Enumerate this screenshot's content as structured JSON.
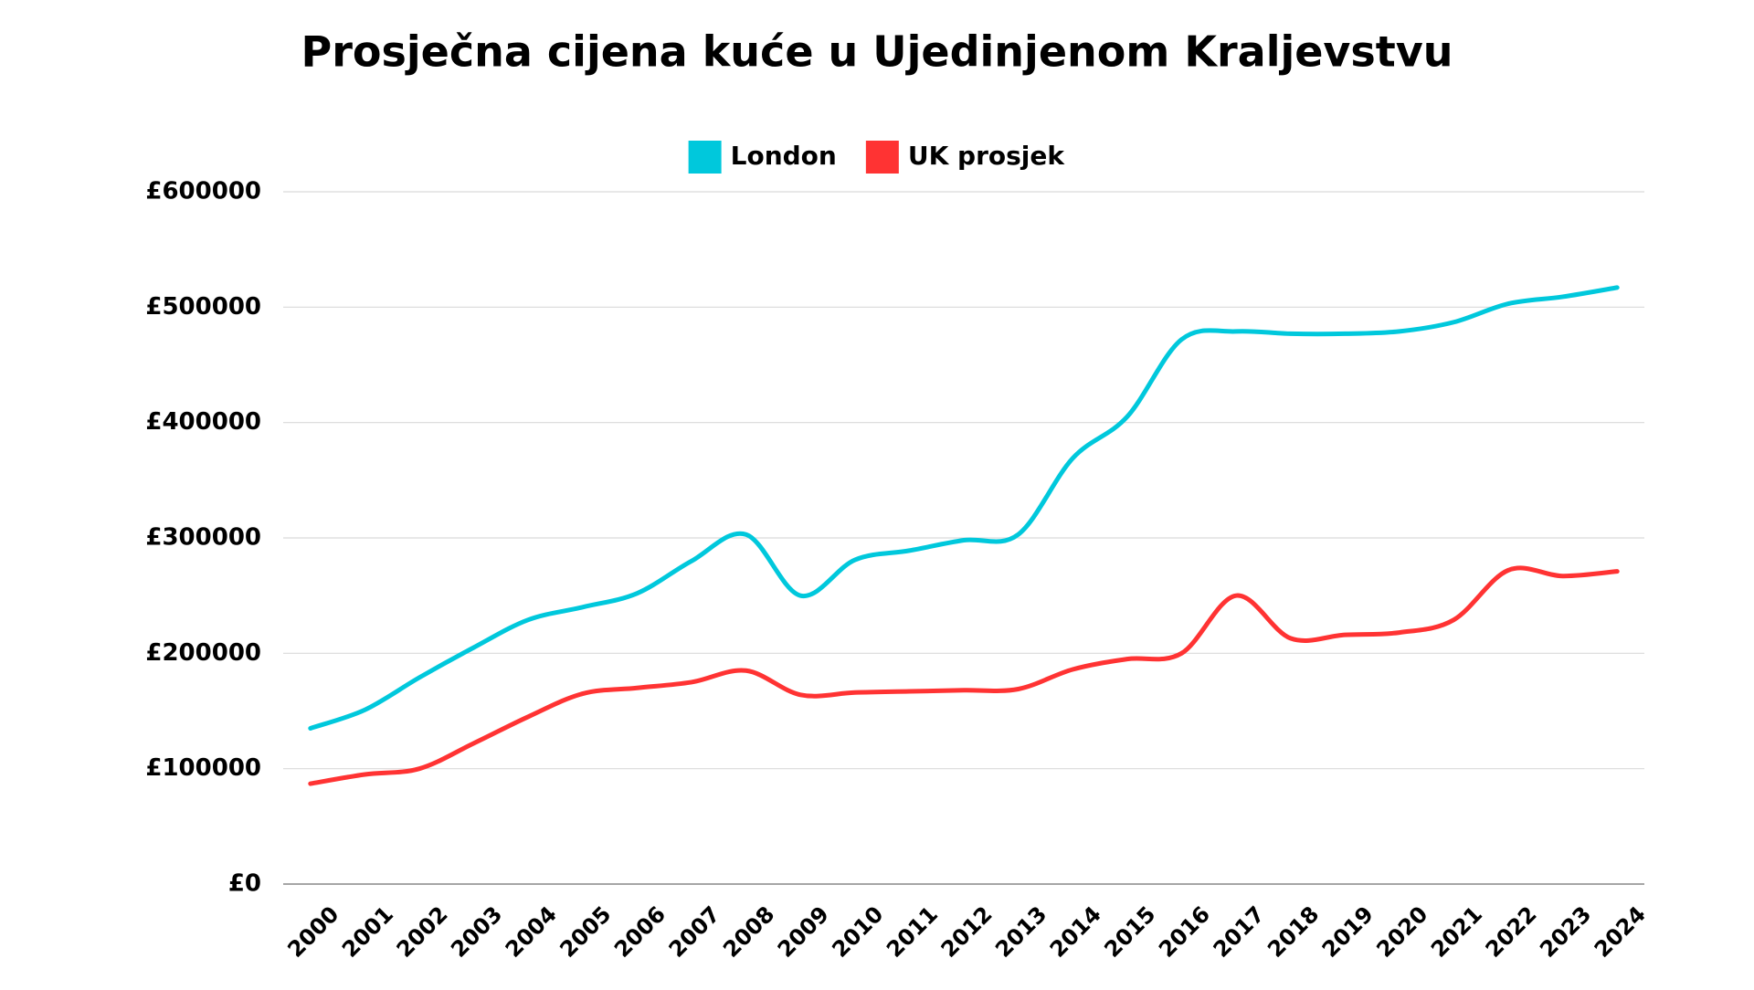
{
  "chart_data": {
    "type": "line",
    "title": "Prosječna cijena kuće u Ujedinjenom Kraljevstvu",
    "categories": [
      "2000",
      "2001",
      "2002",
      "2003",
      "2004",
      "2005",
      "2006",
      "2007",
      "2008",
      "2009",
      "2010",
      "2011",
      "2012",
      "2013",
      "2014",
      "2015",
      "2016",
      "2017",
      "2018",
      "2019",
      "2020",
      "2021",
      "2022",
      "2023",
      "2024"
    ],
    "series": [
      {
        "name": "London",
        "color": "#00c8dc",
        "values": [
          135000,
          151000,
          179000,
          205000,
          229000,
          240000,
          252000,
          280000,
          303000,
          250000,
          281000,
          289000,
          298000,
          303000,
          369000,
          405000,
          472000,
          479000,
          477000,
          477000,
          479000,
          487000,
          503000,
          509000,
          517000
        ]
      },
      {
        "name": "UK prosjek",
        "color": "#ff3333",
        "values": [
          87000,
          95000,
          100000,
          122000,
          145000,
          165000,
          170000,
          175000,
          185000,
          164000,
          166000,
          167000,
          168000,
          169000,
          186000,
          195000,
          200000,
          250000,
          213000,
          216000,
          218000,
          229000,
          272000,
          267000,
          271000
        ]
      }
    ],
    "ylim": [
      0,
      600000
    ],
    "yticks": [
      {
        "value": 0,
        "label": "£0"
      },
      {
        "value": 100000,
        "label": "£100000"
      },
      {
        "value": 200000,
        "label": "£200000"
      },
      {
        "value": 300000,
        "label": "£300000"
      },
      {
        "value": 400000,
        "label": "£400000"
      },
      {
        "value": 500000,
        "label": "£500000"
      },
      {
        "value": 600000,
        "label": "£600000"
      }
    ],
    "grid": true,
    "legend": "top"
  }
}
